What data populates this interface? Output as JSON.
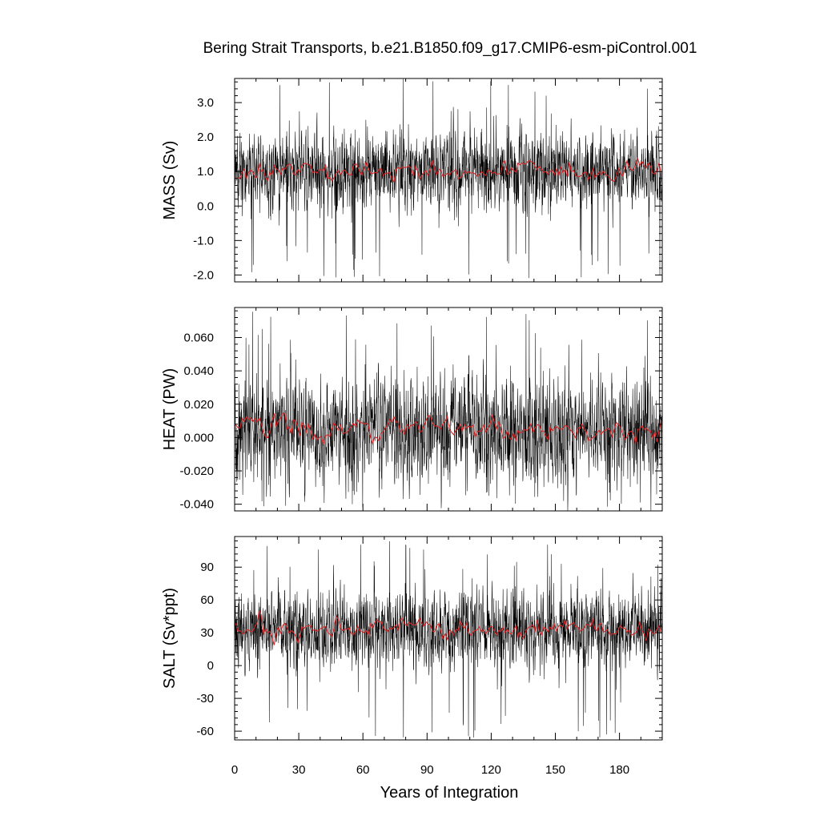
{
  "chart_data": {
    "type": "line",
    "title": "Bering Strait Transports, b.e21.B1850.f09_g17.CMIP6-esm-piControl.001",
    "xlabel": "Years of Integration",
    "xlim": [
      0,
      200
    ],
    "xticks": [
      0,
      30,
      60,
      90,
      120,
      150,
      180
    ],
    "colors": {
      "monthly": "#000000",
      "annual": "#d62728"
    },
    "panels": [
      {
        "ylabel": "MASS (Sv)",
        "ylim": [
          -2.2,
          3.7
        ],
        "yticks": [
          3.0,
          2.0,
          1.0,
          0.0,
          -1.0,
          -2.0
        ],
        "yticklabels": [
          "3.0",
          "2.0",
          "1.0",
          "0.0",
          "-1.0",
          "-2.0"
        ],
        "monthly_mean": 1.0,
        "monthly_spread": 0.45,
        "monthly_min": -2.1,
        "monthly_max": 3.7,
        "annual_mean": 1.0,
        "annual_spread": 0.12,
        "seed": 11
      },
      {
        "ylabel": "HEAT (PW)",
        "ylim": [
          -0.044,
          0.078
        ],
        "yticks": [
          0.06,
          0.04,
          0.02,
          0.0,
          -0.02,
          -0.04
        ],
        "yticklabels": [
          "0.060",
          "0.040",
          "0.020",
          "0.000",
          "-0.020",
          "-0.040"
        ],
        "monthly_mean": 0.005,
        "monthly_spread": 0.012,
        "monthly_min": -0.044,
        "monthly_max": 0.078,
        "annual_mean": 0.005,
        "annual_spread": 0.003,
        "seed": 23
      },
      {
        "ylabel": "SALT (Sv*ppt)",
        "ylim": [
          -68,
          118
        ],
        "yticks": [
          90,
          60,
          30,
          0,
          -30,
          -60
        ],
        "yticklabels": [
          "90",
          "60",
          "30",
          "0",
          "-30",
          "-60"
        ],
        "monthly_mean": 33,
        "monthly_spread": 14,
        "monthly_min": -66,
        "monthly_max": 116,
        "annual_mean": 33,
        "annual_spread": 4,
        "seed": 37
      }
    ]
  }
}
